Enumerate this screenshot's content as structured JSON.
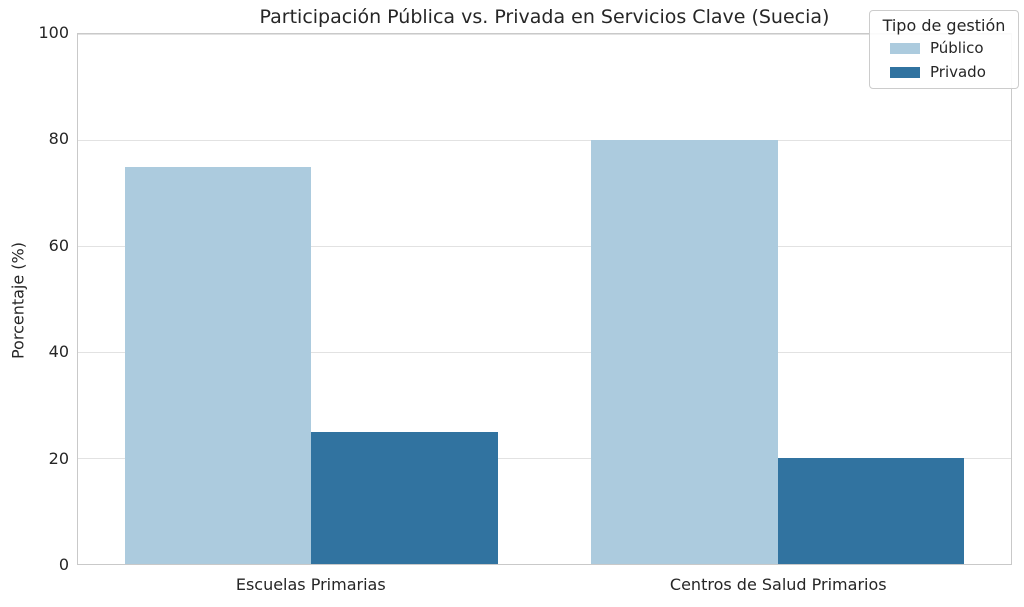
{
  "chart_data": {
    "type": "bar",
    "title": "Participación Pública vs. Privada en Servicios Clave (Suecia)",
    "xlabel": "",
    "ylabel": "Porcentaje (%)",
    "categories": [
      "Escuelas Primarias",
      "Centros de Salud Primarios"
    ],
    "series": [
      {
        "name": "Público",
        "color": "#accbde",
        "values": [
          75,
          80
        ]
      },
      {
        "name": "Privado",
        "color": "#3173a0",
        "values": [
          25,
          20
        ]
      }
    ],
    "ylim": [
      0,
      100
    ],
    "yticks": [
      0,
      20,
      40,
      60,
      80,
      100
    ],
    "grid": true,
    "legend": {
      "title": "Tipo de gestión",
      "position": "upper right"
    }
  },
  "style": {
    "grid_color": "#e2e2e2",
    "spine_color": "#c9c9c9",
    "text_color": "#262626",
    "background": "#ffffff"
  }
}
